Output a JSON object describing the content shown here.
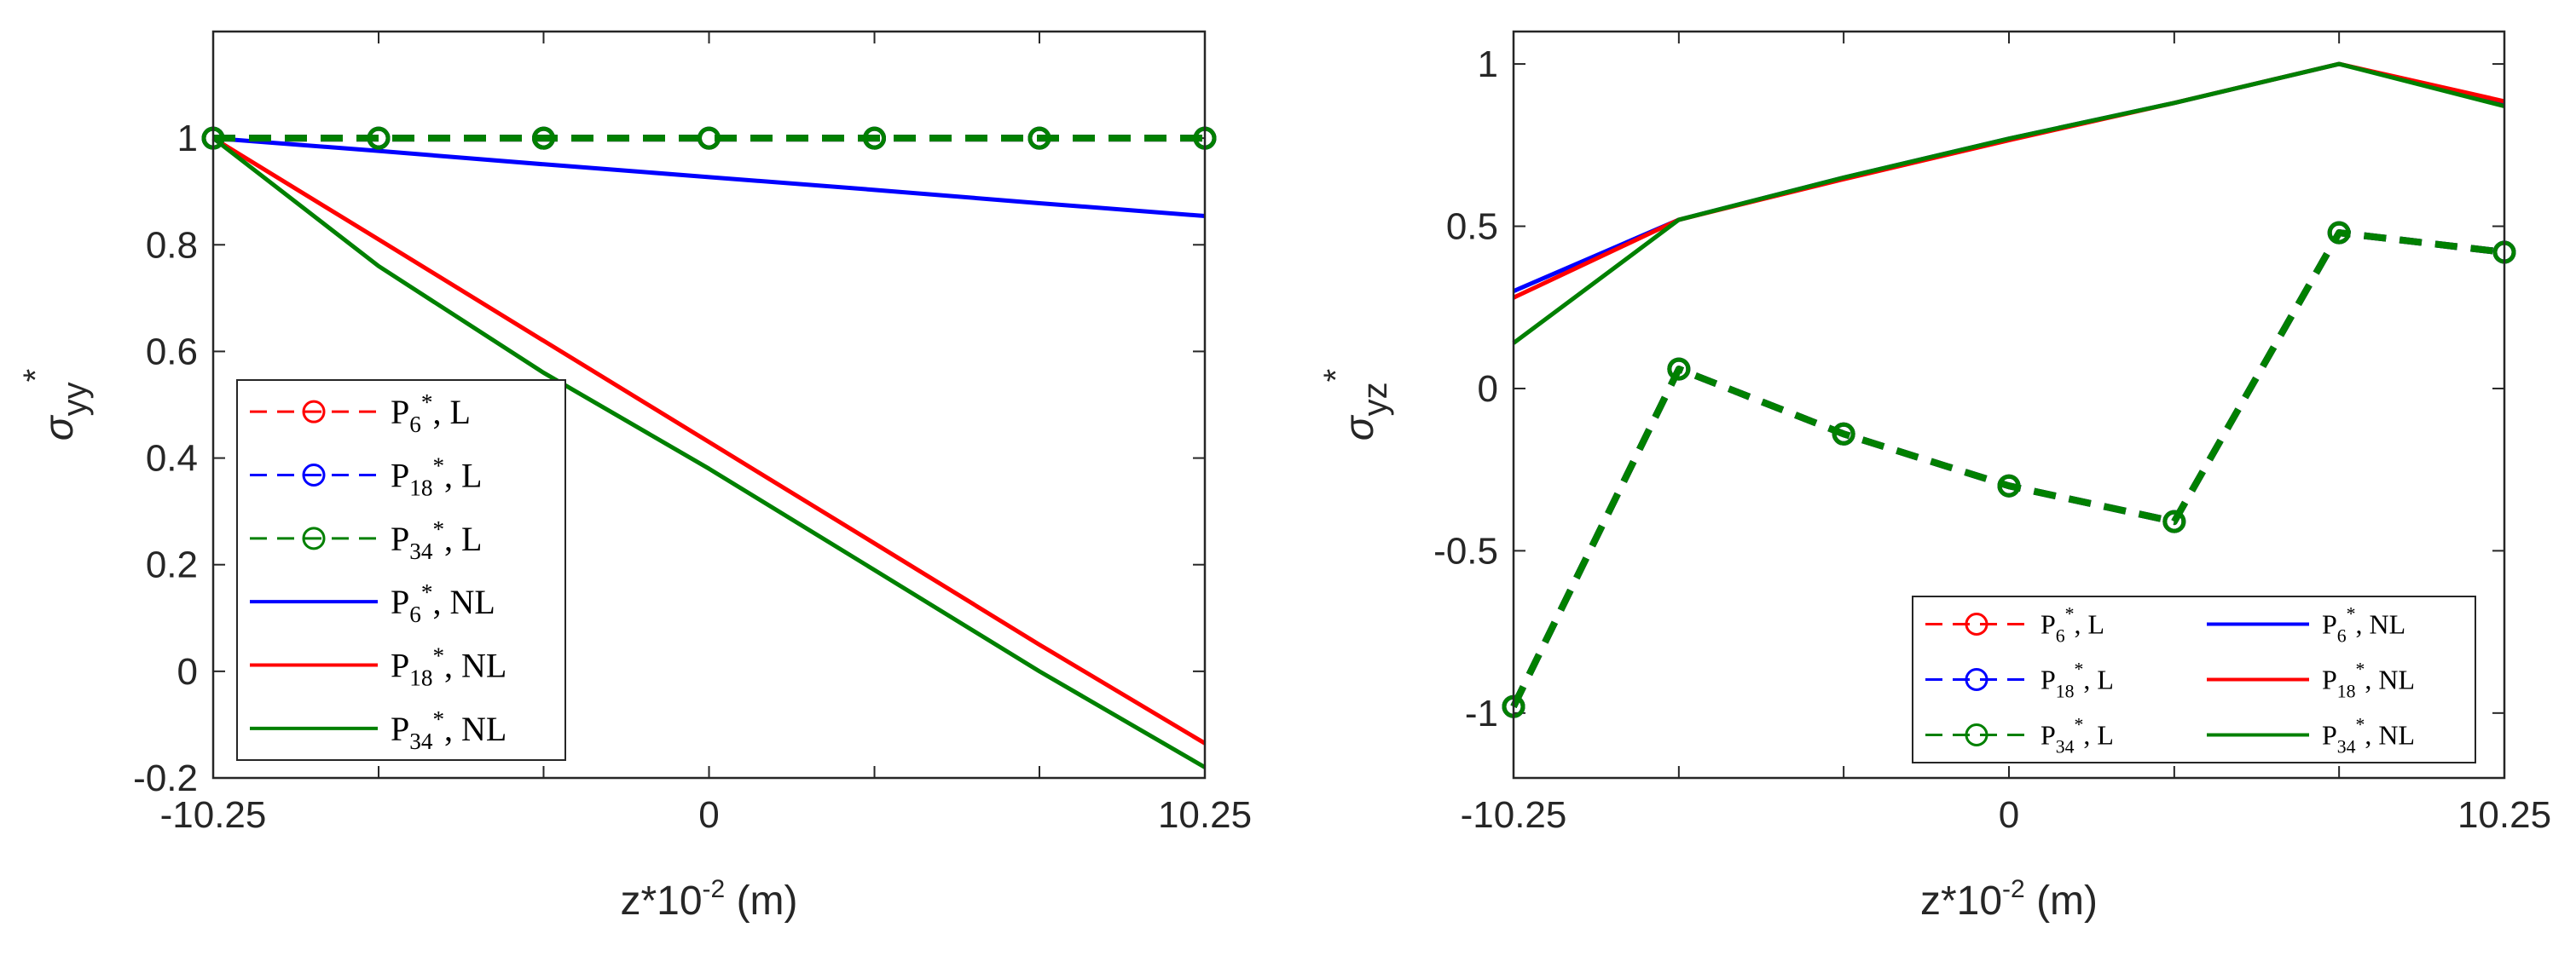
{
  "chart_data": [
    {
      "type": "line",
      "x": [
        -10.25,
        -6.83,
        -3.42,
        0,
        3.42,
        6.83,
        10.25
      ],
      "xlim": [
        -10.25,
        10.25
      ],
      "ylim": [
        -0.2,
        1.2
      ],
      "xticks": [
        -10.25,
        0,
        10.25
      ],
      "xtick_labels": [
        "-10.25",
        "0",
        "10.25"
      ],
      "yticks": [
        -0.2,
        0,
        0.2,
        0.4,
        0.6,
        0.8,
        1
      ],
      "ytick_labels": [
        "-0.2",
        "0",
        "0.2",
        "0.4",
        "0.6",
        "0.8",
        "1"
      ],
      "xlabel": {
        "base": "z*10",
        "exp": "-2",
        "unit": " (m)"
      },
      "ylabel": {
        "sym": "σ",
        "sub": "yy",
        "sup": "*"
      },
      "legend_position": "lower-left",
      "series": [
        {
          "name": "P6*, L",
          "key": "p6l",
          "color": "#ff0000",
          "style": "dashed-marker",
          "values": [
            1.0,
            1.0,
            1.0,
            1.0,
            1.0,
            1.0,
            1.0
          ]
        },
        {
          "name": "P18*, L",
          "key": "p18l",
          "color": "#0000ff",
          "style": "dashed-marker",
          "values": [
            1.0,
            1.0,
            1.0,
            1.0,
            1.0,
            1.0,
            1.0
          ]
        },
        {
          "name": "P34*, L",
          "key": "p34l",
          "color": "#008000",
          "style": "dashed-marker",
          "values": [
            1.0,
            1.0,
            1.0,
            1.0,
            1.0,
            1.0,
            1.0
          ]
        },
        {
          "name": "P6*, NL",
          "key": "p6nl",
          "color": "#0000ff",
          "style": "solid",
          "values": [
            1.0,
            0.976,
            0.951,
            0.927,
            0.903,
            0.878,
            0.854
          ]
        },
        {
          "name": "P18*, NL",
          "key": "p18nl",
          "color": "#ff0000",
          "style": "solid",
          "values": [
            1.0,
            0.81,
            0.62,
            0.43,
            0.24,
            0.05,
            -0.135
          ]
        },
        {
          "name": "P34*, NL",
          "key": "p34nl",
          "color": "#008000",
          "style": "solid",
          "values": [
            1.0,
            0.76,
            0.56,
            0.38,
            0.19,
            0.0,
            -0.18
          ]
        }
      ]
    },
    {
      "type": "line",
      "x": [
        -10.25,
        -6.83,
        -3.42,
        0,
        3.42,
        6.83,
        10.25
      ],
      "xlim": [
        -10.25,
        10.25
      ],
      "ylim": [
        -1.2,
        1.1
      ],
      "xticks": [
        -10.25,
        0,
        10.25
      ],
      "xtick_labels": [
        "-10.25",
        "0",
        "10.25"
      ],
      "yticks": [
        -1,
        -0.5,
        0,
        0.5,
        1
      ],
      "ytick_labels": [
        "-1",
        "-0.5",
        "0",
        "0.5",
        "1"
      ],
      "xlabel": {
        "base": "z*10",
        "exp": "-2",
        "unit": " (m)"
      },
      "ylabel": {
        "sym": "σ",
        "sub": "yz",
        "sup": "*"
      },
      "legend_position": "lower-right",
      "series": [
        {
          "name": "P6*, L",
          "key": "p6l",
          "color": "#ff0000",
          "style": "dashed-marker",
          "values": [
            -0.98,
            0.06,
            -0.14,
            -0.3,
            -0.41,
            0.48,
            0.42
          ]
        },
        {
          "name": "P18*, L",
          "key": "p18l",
          "color": "#0000ff",
          "style": "dashed-marker",
          "values": [
            -0.98,
            0.06,
            -0.14,
            -0.3,
            -0.41,
            0.48,
            0.42
          ]
        },
        {
          "name": "P34*, L",
          "key": "p34l",
          "color": "#008000",
          "style": "dashed-marker",
          "values": [
            -0.98,
            0.06,
            -0.14,
            -0.3,
            -0.41,
            0.48,
            0.42
          ]
        },
        {
          "name": "P6*, NL",
          "key": "p6nl",
          "color": "#0000ff",
          "style": "solid",
          "values": [
            0.3,
            0.52,
            0.65,
            0.77,
            0.88,
            1.0,
            0.88
          ]
        },
        {
          "name": "P18*, NL",
          "key": "p18nl",
          "color": "#ff0000",
          "style": "solid",
          "values": [
            0.28,
            0.52,
            0.645,
            0.765,
            0.88,
            1.0,
            0.885
          ]
        },
        {
          "name": "P34*, NL",
          "key": "p34nl",
          "color": "#008000",
          "style": "solid",
          "values": [
            0.14,
            0.52,
            0.65,
            0.77,
            0.88,
            1.0,
            0.87
          ]
        }
      ]
    }
  ],
  "legend_items": [
    {
      "sym": "P",
      "sub": "6",
      "sup": "*",
      "rest": ", L"
    },
    {
      "sym": "P",
      "sub": "18",
      "sup": "*",
      "rest": ", L"
    },
    {
      "sym": "P",
      "sub": "34",
      "sup": "*",
      "rest": ", L"
    },
    {
      "sym": "P",
      "sub": "6",
      "sup": "*",
      "rest": ", NL"
    },
    {
      "sym": "P",
      "sub": "18",
      "sup": "*",
      "rest": ", NL"
    },
    {
      "sym": "P",
      "sub": "34",
      "sup": "*",
      "rest": ", NL"
    }
  ]
}
